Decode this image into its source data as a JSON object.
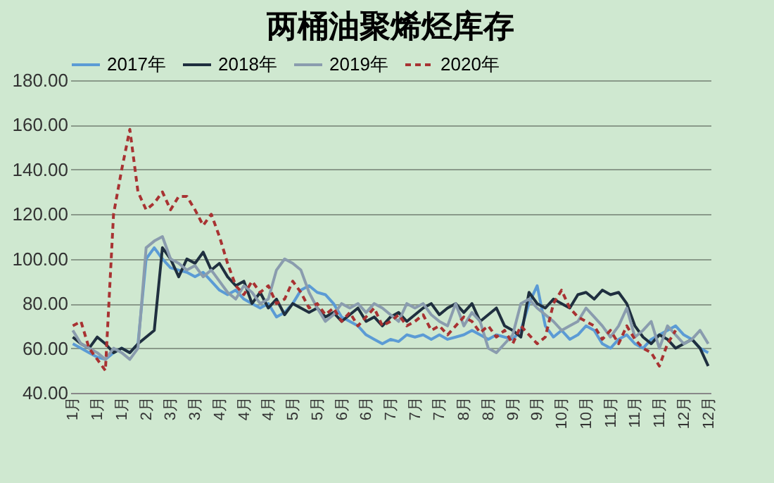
{
  "chart_data": {
    "type": "line",
    "title": "两桶油聚烯烃库存",
    "categories": [
      "1月",
      null,
      null,
      "1月",
      null,
      null,
      "1月",
      null,
      null,
      "2月",
      null,
      null,
      "3月",
      null,
      null,
      "3月",
      null,
      null,
      "4月",
      null,
      null,
      "4月",
      null,
      null,
      "4月",
      null,
      null,
      "5月",
      null,
      null,
      "5月",
      null,
      null,
      "6月",
      null,
      null,
      "6月",
      null,
      null,
      "7月",
      null,
      null,
      "7月",
      null,
      null,
      "7月",
      null,
      null,
      "8月",
      null,
      null,
      "8月",
      null,
      null,
      "9月",
      null,
      null,
      "9月",
      null,
      null,
      "10月",
      null,
      null,
      "10月",
      null,
      null,
      "11月",
      null,
      null,
      "11月",
      null,
      null,
      "11月",
      null,
      null,
      "12月",
      null,
      null,
      "12月"
    ],
    "series": [
      {
        "name": "2017年",
        "color": "#5b9bd5",
        "line_style": "solid",
        "values": [
          62,
          60,
          58,
          56,
          55,
          58,
          60,
          58,
          62,
          100,
          105,
          100,
          96,
          95,
          94,
          92,
          94,
          90,
          86,
          84,
          86,
          82,
          80,
          78,
          80,
          74,
          76,
          80,
          86,
          88,
          85,
          84,
          80,
          74,
          72,
          70,
          66,
          64,
          62,
          64,
          63,
          66,
          65,
          66,
          64,
          66,
          64,
          65,
          66,
          68,
          66,
          64,
          66,
          65,
          64,
          68,
          80,
          88,
          70,
          65,
          68,
          64,
          66,
          70,
          68,
          62,
          60,
          64,
          66,
          62,
          60,
          64,
          66,
          68,
          70,
          66,
          64,
          60,
          58
        ]
      },
      {
        "name": "2018年",
        "color": "#1f2f3f",
        "line_style": "solid",
        "values": [
          65,
          62,
          60,
          65,
          62,
          58,
          60,
          58,
          62,
          65,
          68,
          105,
          100,
          92,
          100,
          98,
          103,
          95,
          98,
          92,
          88,
          90,
          80,
          85,
          78,
          82,
          75,
          80,
          78,
          76,
          78,
          74,
          76,
          72,
          75,
          78,
          72,
          74,
          70,
          74,
          76,
          72,
          75,
          78,
          80,
          75,
          78,
          80,
          76,
          80,
          72,
          75,
          78,
          70,
          68,
          65,
          85,
          80,
          78,
          82,
          80,
          78,
          84,
          85,
          82,
          86,
          84,
          85,
          80,
          70,
          65,
          62,
          66,
          64,
          60,
          62,
          64,
          60,
          52
        ]
      },
      {
        "name": "2019年",
        "color": "#8a9cae",
        "line_style": "solid",
        "values": [
          68,
          62,
          60,
          58,
          55,
          60,
          58,
          55,
          60,
          105,
          108,
          110,
          100,
          98,
          95,
          97,
          92,
          95,
          90,
          85,
          82,
          88,
          85,
          80,
          82,
          95,
          100,
          98,
          95,
          85,
          78,
          72,
          75,
          80,
          78,
          80,
          76,
          80,
          78,
          75,
          72,
          80,
          78,
          80,
          75,
          72,
          70,
          80,
          70,
          76,
          72,
          60,
          58,
          62,
          66,
          80,
          82,
          78,
          75,
          72,
          68,
          70,
          72,
          78,
          74,
          70,
          65,
          70,
          78,
          65,
          68,
          72,
          60,
          70,
          66,
          62,
          64,
          68,
          62
        ]
      },
      {
        "name": "2020年",
        "color": "#a83232",
        "line_style": "dashed",
        "values": [
          70,
          72,
          60,
          55,
          50,
          120,
          140,
          158,
          130,
          122,
          125,
          130,
          122,
          128,
          128,
          122,
          115,
          120,
          110,
          98,
          88,
          84,
          90,
          85,
          88,
          80,
          82,
          90,
          85,
          78,
          80,
          75,
          78,
          72,
          76,
          70,
          74,
          78,
          70,
          72,
          75,
          70,
          72,
          75,
          68,
          70,
          66,
          70,
          74,
          72,
          67,
          70,
          65,
          68,
          62,
          70,
          66,
          62,
          65,
          80,
          86,
          78,
          74,
          72,
          70,
          64,
          68,
          62,
          70,
          64,
          60,
          58,
          52,
          62,
          68,
          null,
          null,
          null,
          null
        ]
      }
    ],
    "ylim": [
      40,
      180
    ],
    "yticks": [
      {
        "value": 40,
        "label": "40.00"
      },
      {
        "value": 60,
        "label": "60.00"
      },
      {
        "value": 80,
        "label": "80.00"
      },
      {
        "value": 100,
        "label": "100.00"
      },
      {
        "value": 120,
        "label": "120.00"
      },
      {
        "value": 140,
        "label": "140.00"
      },
      {
        "value": 160,
        "label": "160.00"
      },
      {
        "value": 180,
        "label": "180.00"
      }
    ],
    "grid": "y",
    "legend": "top"
  }
}
